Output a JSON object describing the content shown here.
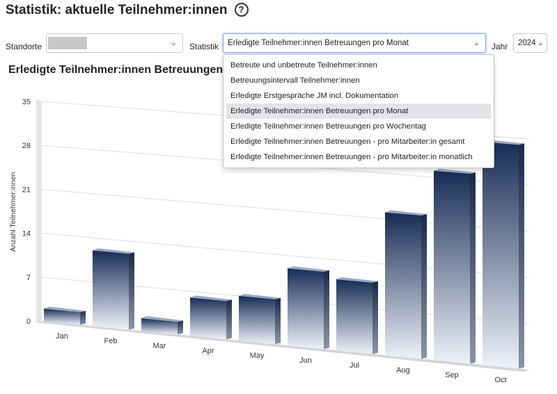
{
  "header": {
    "title": "Statistik: aktuelle Teilnehmer:innen",
    "help_icon": "question-circle-icon"
  },
  "filters": {
    "standorte_label": "Standorte",
    "standorte_value": "",
    "statistik_label": "Statistik",
    "statistik_value": "Erledigte Teilnehmer:innen Betreuungen pro Monat",
    "jahr_label": "Jahr",
    "jahr_value": "2024"
  },
  "dropdown": {
    "options": [
      "Betreute und unbetreute Teilnehmer:innen",
      "Betreuungsintervall Teilnehmer:innen",
      "Erledigte Erstgespräche JM incl. Dokumentation",
      "Erledigte Teilnehmer:innen Betreuungen pro Monat",
      "Erledigte Teilnehmer:innen Betreuungen pro Wochentag",
      "Erledigte Teilnehmer:innen Betreuungen - pro Mitarbeiter:in gesamt",
      "Erledigte Teilnehmer:innen Betreuungen - pro Mitarbeiter:in monatlich"
    ],
    "selected_index": 3
  },
  "section": {
    "title": "Erledigte Teilnehmer:innen Betreuungen"
  },
  "chart_data": {
    "type": "bar",
    "ylabel": "Anzahl Teilnehmer:innen",
    "categories": [
      "Jan",
      "Feb",
      "Mar",
      "Apr",
      "May",
      "Jun",
      "Jul",
      "Aug",
      "Sep",
      "Oct"
    ],
    "values": [
      2,
      12,
      2,
      6,
      7,
      12,
      11,
      22,
      29,
      34
    ],
    "ylim": [
      0,
      35
    ],
    "yticks": [
      "0",
      "7",
      "14",
      "21",
      "28",
      "35"
    ],
    "grid": true,
    "colors": {
      "top": "#172c55",
      "bottom": "#eef2fa"
    }
  }
}
